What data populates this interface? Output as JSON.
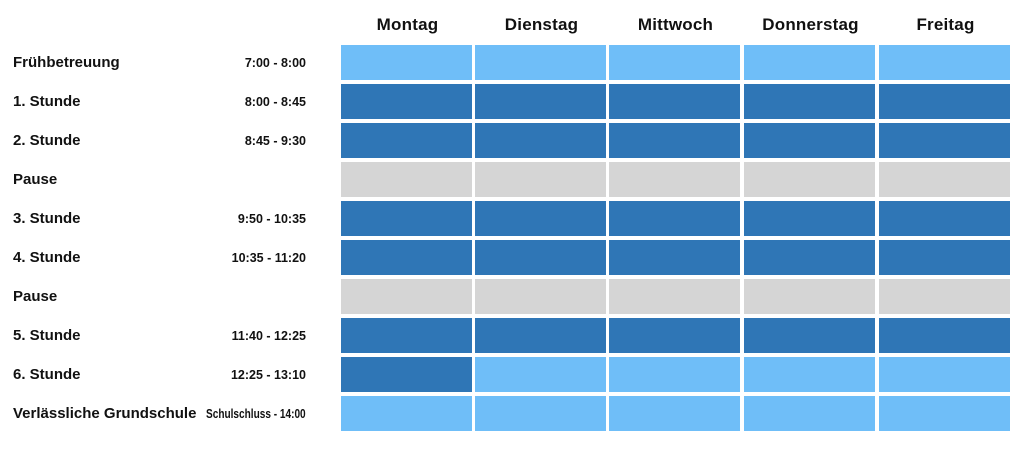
{
  "days": [
    "Montag",
    "Dienstag",
    "Mittwoch",
    "Donnerstag",
    "Freitag"
  ],
  "colors": {
    "light": "#6fbef8",
    "dark": "#2f76b6",
    "grey": "#d5d5d5"
  },
  "rows": [
    {
      "label": "Frühbetreuung",
      "time": "7:00 - 8:00",
      "cells": [
        "light",
        "light",
        "light",
        "light",
        "light"
      ]
    },
    {
      "label": "1. Stunde",
      "time": "8:00 - 8:45",
      "cells": [
        "dark",
        "dark",
        "dark",
        "dark",
        "dark"
      ]
    },
    {
      "label": "2. Stunde",
      "time": "8:45 - 9:30",
      "cells": [
        "dark",
        "dark",
        "dark",
        "dark",
        "dark"
      ]
    },
    {
      "label": "Pause",
      "time": "",
      "cells": [
        "grey",
        "grey",
        "grey",
        "grey",
        "grey"
      ]
    },
    {
      "label": "3. Stunde",
      "time": "9:50 - 10:35",
      "cells": [
        "dark",
        "dark",
        "dark",
        "dark",
        "dark"
      ]
    },
    {
      "label": "4. Stunde",
      "time": "10:35 - 11:20",
      "cells": [
        "dark",
        "dark",
        "dark",
        "dark",
        "dark"
      ]
    },
    {
      "label": "Pause",
      "time": "",
      "cells": [
        "grey",
        "grey",
        "grey",
        "grey",
        "grey"
      ]
    },
    {
      "label": "5. Stunde",
      "time": "11:40 - 12:25",
      "cells": [
        "dark",
        "dark",
        "dark",
        "dark",
        "dark"
      ]
    },
    {
      "label": "6. Stunde",
      "time": "12:25 - 13:10",
      "cells": [
        "dark",
        "light",
        "light",
        "light",
        "light"
      ]
    },
    {
      "label": "Verlässliche Grundschule",
      "time": "Schulschluss - 14:00",
      "cells": [
        "light",
        "light",
        "light",
        "light",
        "light"
      ]
    }
  ]
}
